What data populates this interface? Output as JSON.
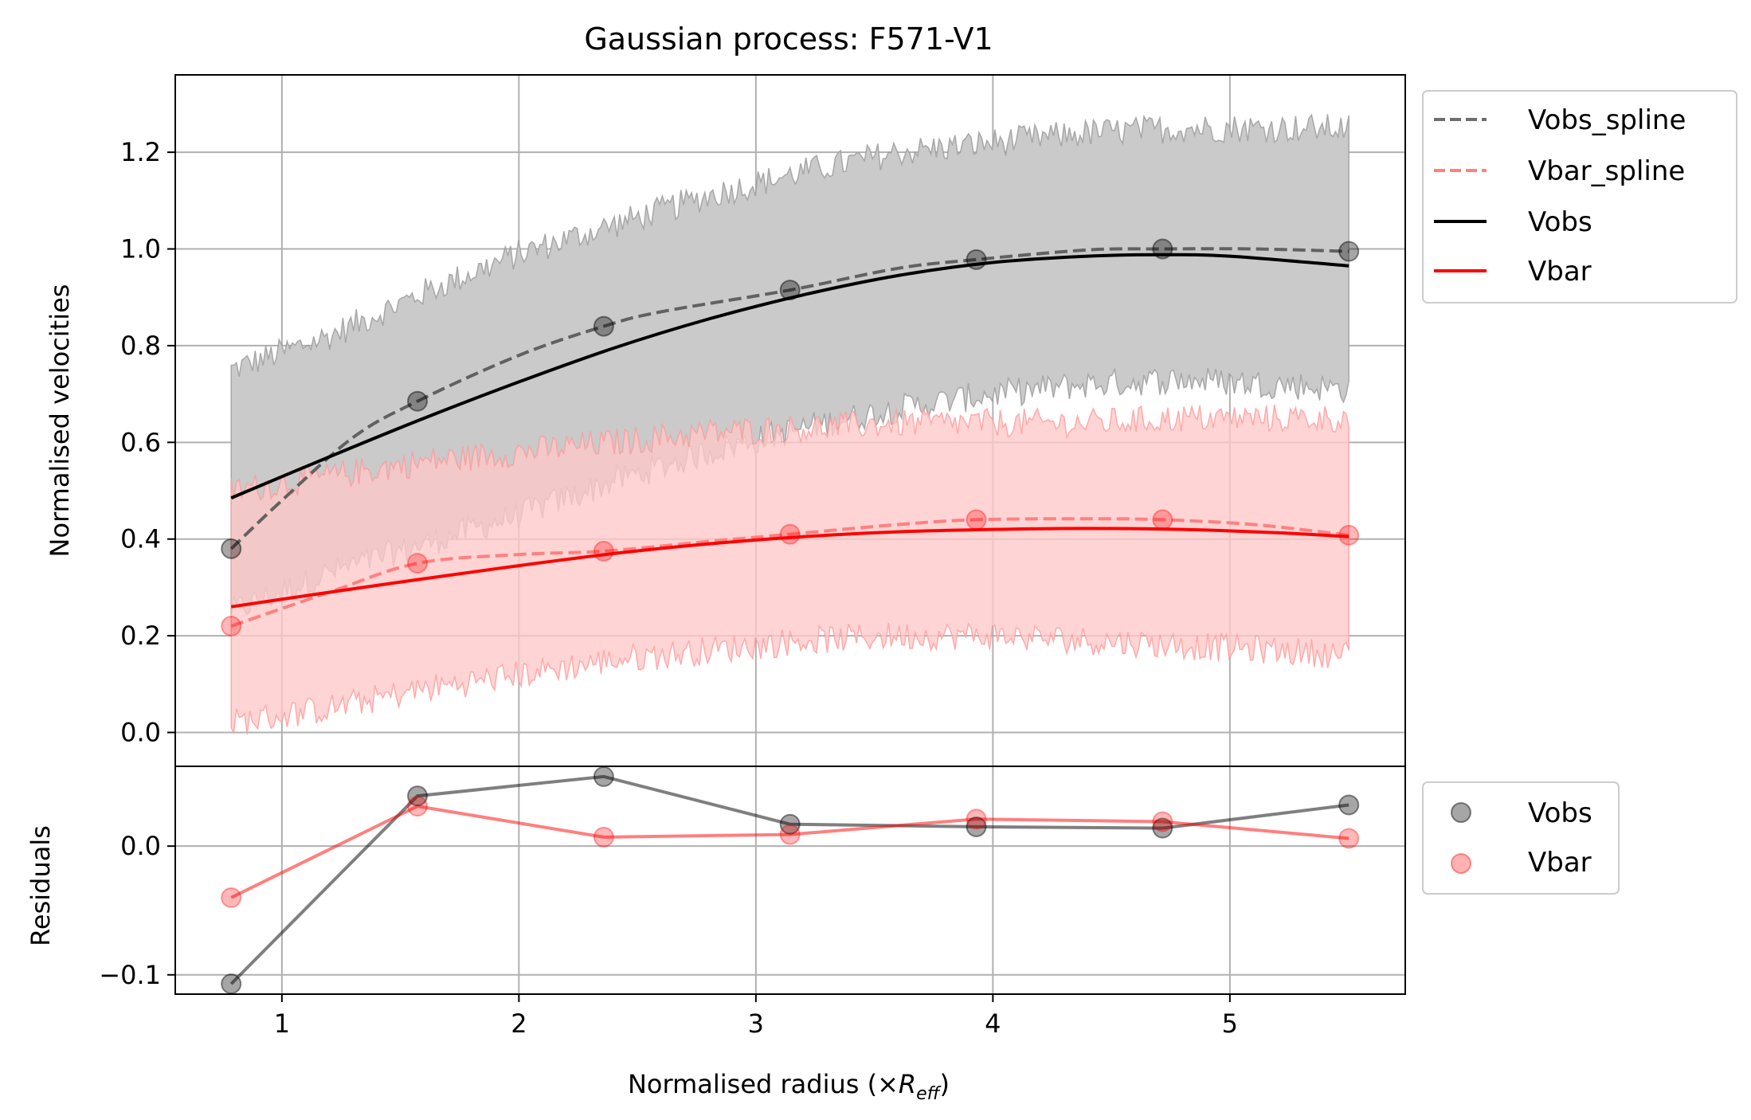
{
  "chart_data": [
    {
      "type": "line",
      "title": "Gaussian process: F571-V1",
      "ylabel": "Normalised velocities",
      "xlim": [
        0.55,
        5.74
      ],
      "ylim": [
        -0.07,
        1.36
      ],
      "x_ticks": [
        1,
        2,
        3,
        4,
        5
      ],
      "y_ticks": [
        0.0,
        0.2,
        0.4,
        0.6,
        0.8,
        1.0,
        1.2
      ],
      "y_tick_labels": [
        "0.0",
        "0.2",
        "0.4",
        "0.6",
        "0.8",
        "1.0",
        "1.2"
      ],
      "grid": true,
      "legend_position": "outside upper right",
      "legend": [
        "Vobs_spline",
        "Vbar_spline",
        "Vobs",
        "Vbar"
      ],
      "x": [
        0.786,
        1.572,
        2.358,
        3.144,
        3.93,
        4.716,
        5.502
      ],
      "points": {
        "Vobs": [
          0.38,
          0.685,
          0.84,
          0.915,
          0.978,
          1.0,
          0.995
        ],
        "Vbar": [
          0.22,
          0.35,
          0.375,
          0.41,
          0.44,
          0.44,
          0.408
        ]
      },
      "series": [
        {
          "name": "Vobs_spline",
          "style": "dashed",
          "color": "#555555",
          "x": [
            0.786,
            1.0,
            1.3,
            1.572,
            2.0,
            2.358,
            2.6,
            3.144,
            3.6,
            3.93,
            4.4,
            4.716,
            5.1,
            5.502
          ],
          "y": [
            0.38,
            0.48,
            0.61,
            0.685,
            0.78,
            0.84,
            0.87,
            0.915,
            0.96,
            0.978,
            0.998,
            1.0,
            1.0,
            0.995
          ]
        },
        {
          "name": "Vbar_spline",
          "style": "dashed",
          "color": "#ff8080",
          "x": [
            0.786,
            1.2,
            1.572,
            2.0,
            2.358,
            2.8,
            3.144,
            3.6,
            3.93,
            4.4,
            4.716,
            5.1,
            5.502
          ],
          "y": [
            0.22,
            0.29,
            0.35,
            0.368,
            0.375,
            0.395,
            0.41,
            0.43,
            0.44,
            0.442,
            0.44,
            0.43,
            0.408
          ]
        },
        {
          "name": "Vobs",
          "style": "solid",
          "color": "#000000",
          "x": [
            0.786,
            1.2,
            1.6,
            2.0,
            2.4,
            2.8,
            3.2,
            3.6,
            4.0,
            4.4,
            4.716,
            5.0,
            5.502
          ],
          "y": [
            0.485,
            0.57,
            0.65,
            0.725,
            0.795,
            0.855,
            0.905,
            0.945,
            0.972,
            0.985,
            0.988,
            0.985,
            0.965
          ]
        },
        {
          "name": "Vbar",
          "style": "solid",
          "color": "#ff0000",
          "x": [
            0.786,
            1.2,
            1.6,
            2.0,
            2.4,
            2.8,
            3.2,
            3.6,
            4.0,
            4.4,
            4.8,
            5.2,
            5.502
          ],
          "y": [
            0.26,
            0.29,
            0.318,
            0.345,
            0.37,
            0.39,
            0.405,
            0.415,
            0.42,
            0.422,
            0.42,
            0.413,
            0.405
          ]
        }
      ],
      "bands": [
        {
          "of": "Vobs",
          "color": "#cacaca",
          "x": [
            0.786,
            1.2,
            1.6,
            2.0,
            2.4,
            2.8,
            3.2,
            3.6,
            4.0,
            4.4,
            4.8,
            5.2,
            5.502
          ],
          "lower": [
            0.25,
            0.33,
            0.39,
            0.45,
            0.52,
            0.58,
            0.63,
            0.67,
            0.7,
            0.72,
            0.73,
            0.72,
            0.71
          ],
          "upper": [
            0.75,
            0.82,
            0.91,
            0.99,
            1.05,
            1.11,
            1.16,
            1.2,
            1.22,
            1.24,
            1.25,
            1.25,
            1.25
          ]
        },
        {
          "of": "Vbar",
          "color": "#ffc8c8",
          "x": [
            0.786,
            1.2,
            1.6,
            2.0,
            2.4,
            2.8,
            3.2,
            3.6,
            4.0,
            4.4,
            4.8,
            5.2,
            5.502
          ],
          "lower": [
            0.02,
            0.05,
            0.09,
            0.12,
            0.15,
            0.17,
            0.19,
            0.2,
            0.2,
            0.19,
            0.18,
            0.17,
            0.16
          ],
          "upper": [
            0.5,
            0.53,
            0.56,
            0.58,
            0.6,
            0.62,
            0.63,
            0.64,
            0.64,
            0.64,
            0.65,
            0.65,
            0.65
          ]
        }
      ]
    },
    {
      "type": "line",
      "xlabel": "Normalised radius (×",
      "xlabel_symbol": "R",
      "xlabel_subscript": "eff",
      "xlabel_close": ")",
      "ylabel": "Residuals",
      "xlim": [
        0.55,
        5.74
      ],
      "ylim": [
        -0.115,
        0.062
      ],
      "x_ticks": [
        1,
        2,
        3,
        4,
        5
      ],
      "x_tick_labels": [
        "1",
        "2",
        "3",
        "4",
        "5"
      ],
      "y_ticks": [
        0.0,
        -0.1
      ],
      "y_tick_labels": [
        "0.0",
        "−0.1"
      ],
      "grid": true,
      "legend_position": "outside upper right",
      "legend": [
        "Vobs",
        "Vbar"
      ],
      "series": [
        {
          "name": "Vobs",
          "color": "#000000",
          "x": [
            0.786,
            1.572,
            2.358,
            3.144,
            3.93,
            4.716,
            5.502
          ],
          "y": [
            -0.107,
            0.039,
            0.054,
            0.017,
            0.015,
            0.014,
            0.032
          ]
        },
        {
          "name": "Vbar",
          "color": "#ff0000",
          "x": [
            0.786,
            1.572,
            2.358,
            3.144,
            3.93,
            4.716,
            5.502
          ],
          "y": [
            -0.04,
            0.031,
            0.007,
            0.009,
            0.021,
            0.019,
            0.006
          ]
        }
      ]
    }
  ]
}
